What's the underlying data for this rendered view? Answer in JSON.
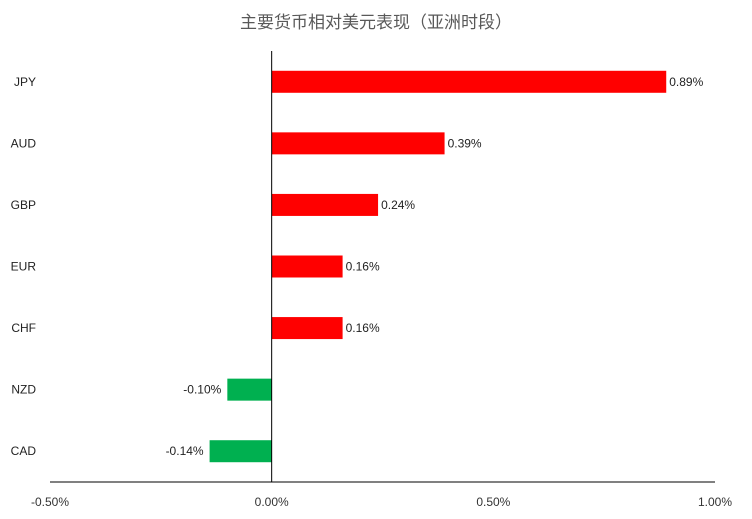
{
  "chart_data": {
    "type": "bar",
    "orientation": "horizontal",
    "title": "主要货币相对美元表现（亚洲时段）",
    "xlabel": "",
    "ylabel": "",
    "categories": [
      "JPY",
      "AUD",
      "GBP",
      "EUR",
      "CHF",
      "NZD",
      "CAD"
    ],
    "values": [
      0.89,
      0.39,
      0.24,
      0.16,
      0.16,
      -0.1,
      -0.14
    ],
    "data_labels": [
      "0.89%",
      "0.39%",
      "0.24%",
      "0.16%",
      "0.16%",
      "-0.10%",
      "-0.14%"
    ],
    "xlim": [
      -0.5,
      1.0
    ],
    "x_ticks": [
      -0.5,
      0.0,
      0.5,
      1.0
    ],
    "x_tick_labels": [
      "-0.50%",
      "0.00%",
      "0.50%",
      "1.00%"
    ],
    "grid": false,
    "colors": {
      "positive": "#ff0000",
      "negative": "#00b050",
      "axis": "#000000"
    }
  }
}
